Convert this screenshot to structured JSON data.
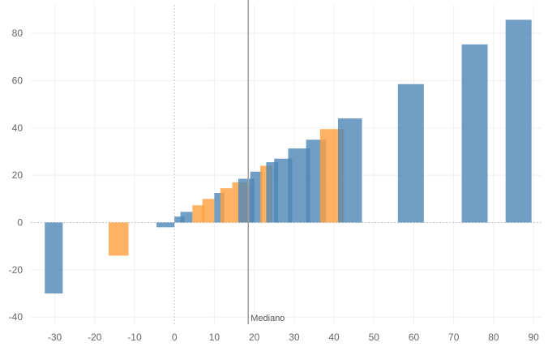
{
  "chart_data": {
    "type": "bar",
    "xlim": [
      -36,
      92
    ],
    "ylim": [
      -43,
      92
    ],
    "x_ticks": [
      -30,
      -20,
      -10,
      0,
      10,
      20,
      30,
      40,
      50,
      60,
      70,
      80,
      90
    ],
    "y_ticks": [
      80,
      60,
      40,
      20,
      0,
      -20,
      -40
    ],
    "grid": true,
    "colors": {
      "blue": "#4e86b5",
      "orange": "#ff9f3d",
      "median_line": "#9e9e9e",
      "zero_line": "#c8c8c8"
    },
    "reference_line": {
      "label": "Mediano",
      "x": 18.5
    },
    "bars": [
      {
        "x0": -32.5,
        "x1": -28.0,
        "value": -30,
        "color": "blue",
        "opacity": 0.8
      },
      {
        "x0": -16.5,
        "x1": -11.5,
        "value": -14,
        "color": "orange",
        "opacity": 0.8
      },
      {
        "x0": -4.5,
        "x1": 0.0,
        "value": -2,
        "color": "blue",
        "opacity": 0.8
      },
      {
        "x0": 0.0,
        "x1": 2.5,
        "value": 2.5,
        "color": "blue",
        "opacity": 0.8
      },
      {
        "x0": 1.5,
        "x1": 4.5,
        "value": 4.5,
        "color": "blue",
        "opacity": 0.8
      },
      {
        "x0": 4.5,
        "x1": 7.5,
        "value": 7.3,
        "color": "orange",
        "opacity": 0.8
      },
      {
        "x0": 7.0,
        "x1": 10.0,
        "value": 10.0,
        "color": "orange",
        "opacity": 0.8
      },
      {
        "x0": 10.0,
        "x1": 12.5,
        "value": 12.5,
        "color": "blue",
        "opacity": 0.8
      },
      {
        "x0": 11.5,
        "x1": 14.5,
        "value": 14.5,
        "color": "orange",
        "opacity": 0.8
      },
      {
        "x0": 14.5,
        "x1": 19.0,
        "value": 17.0,
        "color": "orange",
        "opacity": 0.8
      },
      {
        "x0": 16.0,
        "x1": 20.0,
        "value": 18.5,
        "color": "blue",
        "opacity": 0.8
      },
      {
        "x0": 19.0,
        "x1": 22.0,
        "value": 21.5,
        "color": "blue",
        "opacity": 0.8
      },
      {
        "x0": 21.5,
        "x1": 24.5,
        "value": 24.0,
        "color": "orange",
        "opacity": 0.8
      },
      {
        "x0": 23.0,
        "x1": 26.0,
        "value": 25.5,
        "color": "blue",
        "opacity": 0.8
      },
      {
        "x0": 25.0,
        "x1": 29.5,
        "value": 27.0,
        "color": "blue",
        "opacity": 0.8
      },
      {
        "x0": 28.5,
        "x1": 34.0,
        "value": 31.3,
        "color": "blue",
        "opacity": 0.8
      },
      {
        "x0": 33.0,
        "x1": 38.0,
        "value": 35.0,
        "color": "blue",
        "opacity": 0.8
      },
      {
        "x0": 36.5,
        "x1": 42.5,
        "value": 39.5,
        "color": "orange",
        "opacity": 0.8
      },
      {
        "x0": 41.0,
        "x1": 47.0,
        "value": 44.0,
        "color": "blue",
        "opacity": 0.8
      },
      {
        "x0": 56.0,
        "x1": 62.5,
        "value": 58.5,
        "color": "blue",
        "opacity": 0.8
      },
      {
        "x0": 72.0,
        "x1": 78.5,
        "value": 75.3,
        "color": "blue",
        "opacity": 0.8
      },
      {
        "x0": 83.0,
        "x1": 89.5,
        "value": 85.7,
        "color": "blue",
        "opacity": 0.8
      }
    ]
  }
}
